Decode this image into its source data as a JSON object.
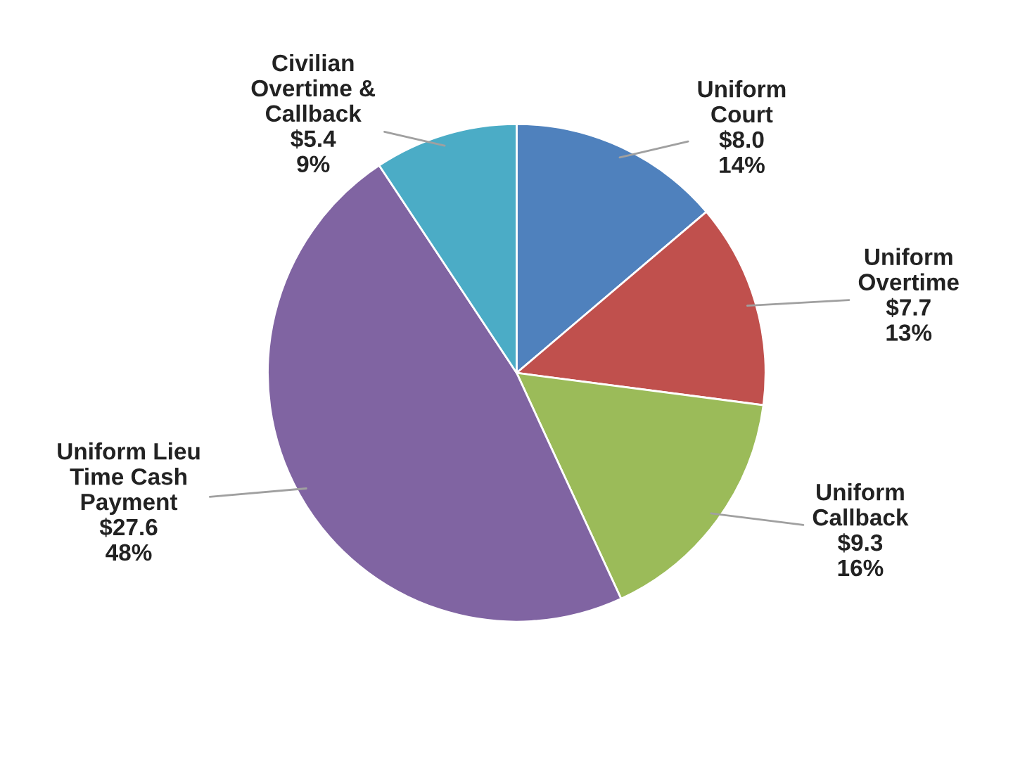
{
  "chart_data": {
    "type": "pie",
    "categories": [
      "Uniform\nCourt",
      "Uniform\nOvertime",
      "Uniform\nCallback",
      "Uniform Lieu\nTime Cash\nPayment",
      "Civilian\nOvertime &\nCallback"
    ],
    "values": [
      8.0,
      7.7,
      9.3,
      27.6,
      5.4
    ],
    "value_labels": [
      "$8.0\n14%",
      "$7.7\n13%",
      "$9.3\n16%",
      "$27.6\n48%",
      "$5.4\n9%"
    ],
    "colors": [
      "#4f81bd",
      "#c0504d",
      "#9bbb59",
      "#8064a2",
      "#4bacc6"
    ],
    "legend": false
  }
}
